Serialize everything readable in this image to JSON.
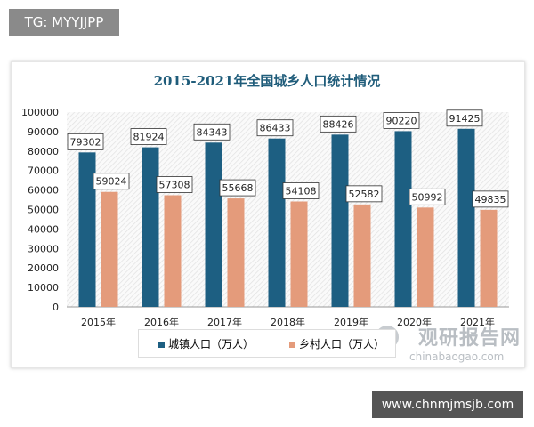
{
  "badge": "TG: MYYJJPP",
  "site": "www.chnmjmsjb.com",
  "watermark": {
    "cn": "观研报告网",
    "en": "chinabaogao.com"
  },
  "chart_data": {
    "type": "bar",
    "title": "2015-2021年全国城乡人口统计情况",
    "categories": [
      "2015年",
      "2016年",
      "2017年",
      "2018年",
      "2019年",
      "2020年",
      "2021年"
    ],
    "series": [
      {
        "name": "城镇人口（万人）",
        "color": "#1d5f82",
        "values": [
          79302,
          81924,
          84343,
          86433,
          88426,
          90220,
          91425
        ]
      },
      {
        "name": "乡村人口（万人）",
        "color": "#e49b7b",
        "values": [
          59024,
          57308,
          55668,
          54108,
          52582,
          50992,
          49835
        ]
      }
    ],
    "ylim": [
      0,
      100000
    ],
    "yticks": [
      0,
      10000,
      20000,
      30000,
      40000,
      50000,
      60000,
      70000,
      80000,
      90000,
      100000
    ],
    "grid": false,
    "legend": "bottom"
  }
}
